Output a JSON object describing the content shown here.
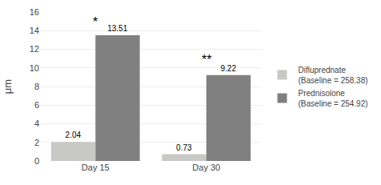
{
  "chart_data": {
    "type": "bar",
    "categories": [
      "Day 15",
      "Day 30"
    ],
    "series": [
      {
        "name": "Difluprednate\n(Baseline = 258.38)",
        "color": "#c8c8c4",
        "values": [
          2.04,
          0.73
        ]
      },
      {
        "name": "Prednisolone\n(Baseline = 254.92)",
        "color": "#808080",
        "values": [
          13.51,
          9.22
        ]
      }
    ],
    "ylabel": "μm",
    "ylim": [
      0,
      16
    ],
    "yticks": [
      0,
      2,
      4,
      6,
      8,
      10,
      12,
      14,
      16
    ],
    "grid": true,
    "legend": "right",
    "data_labels": true,
    "annotations": [
      {
        "text": "*",
        "x": "Day 15",
        "y": 14.0
      },
      {
        "text": "**",
        "x": "Day 30",
        "y": 10.0
      }
    ]
  }
}
